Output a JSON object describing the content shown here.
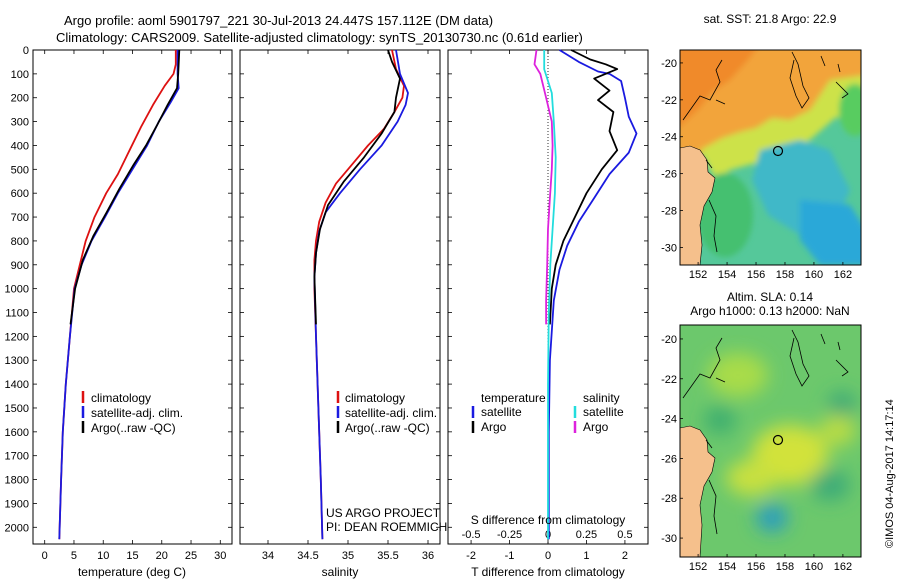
{
  "header": {
    "line1": "Argo profile: aoml 5901797_221 30-Jul-2013 24.447S 157.112E (DM data)",
    "line2": "Climatology: CARS2009. Satellite-adjusted climatology: synTS_20130730.nc (0.61d earlier)"
  },
  "depth_ticks": [
    "0",
    "100",
    "200",
    "300",
    "400",
    "500",
    "600",
    "700",
    "800",
    "900",
    "1000",
    "1100",
    "1200",
    "1300",
    "1400",
    "1500",
    "1600",
    "1700",
    "1800",
    "1900",
    "2000"
  ],
  "colors": {
    "climatology": "#dd1111",
    "satellite": "#1a1ae0",
    "argo": "#000000",
    "cyan": "#22dddd",
    "magenta": "#dd22dd",
    "land": "#f5c08c"
  },
  "credits": {
    "line1": "US ARGO PROJECT",
    "line2": "PI: DEAN ROEMMICH"
  },
  "watermark": "©IMOS 04-Aug-2017 14:17:14",
  "maps": {
    "sst": {
      "title": "sat. SST: 21.8 Argo: 22.9",
      "xticks": [
        "152",
        "154",
        "156",
        "158",
        "160",
        "162"
      ],
      "yticks": [
        "-20",
        "-22",
        "-24",
        "-26",
        "-28",
        "-30"
      ]
    },
    "sla": {
      "title1": "Altim. SLA: 0.14",
      "title2": "Argo h1000: 0.13 h2000: NaN",
      "xticks": [
        "152",
        "154",
        "156",
        "158",
        "160",
        "162"
      ],
      "yticks": [
        "-20",
        "-22",
        "-24",
        "-26",
        "-28",
        "-30"
      ]
    }
  },
  "chart_data": [
    {
      "type": "line",
      "id": "temperature",
      "xlabel": "temperature (deg C)",
      "ylabel": "depth",
      "xlim": [
        -2,
        32
      ],
      "ylim": [
        2070,
        0
      ],
      "xticks": [
        0,
        5,
        10,
        15,
        20,
        25,
        30
      ],
      "xtick_labels": [
        "0",
        "5",
        "10",
        "15",
        "20",
        "25",
        "30"
      ],
      "legend": [
        "climatology",
        "satellite-adj. clim.",
        "Argo(..raw -QC)"
      ],
      "series": [
        {
          "name": "climatology",
          "color": "#dd1111",
          "points": [
            [
              22.4,
              0
            ],
            [
              22.4,
              60
            ],
            [
              22.0,
              100
            ],
            [
              20.5,
              150
            ],
            [
              18.5,
              230
            ],
            [
              16.5,
              320
            ],
            [
              14.5,
              420
            ],
            [
              12.5,
              520
            ],
            [
              10.5,
              600
            ],
            [
              8.5,
              700
            ],
            [
              7.0,
              800
            ],
            [
              6.0,
              900
            ],
            [
              5.0,
              1000
            ],
            [
              4.3,
              1200
            ],
            [
              3.6,
              1400
            ],
            [
              3.1,
              1600
            ],
            [
              2.8,
              1800
            ],
            [
              2.5,
              2050
            ]
          ]
        },
        {
          "name": "satellite-adj. clim.",
          "color": "#1a1ae0",
          "points": [
            [
              22.7,
              0
            ],
            [
              22.7,
              100
            ],
            [
              22.9,
              160
            ],
            [
              21.5,
              220
            ],
            [
              19.5,
              300
            ],
            [
              17.5,
              400
            ],
            [
              15.0,
              500
            ],
            [
              12.5,
              600
            ],
            [
              10.3,
              700
            ],
            [
              8.0,
              800
            ],
            [
              6.3,
              900
            ],
            [
              5.1,
              1000
            ],
            [
              4.3,
              1200
            ],
            [
              3.6,
              1400
            ],
            [
              3.1,
              1600
            ],
            [
              2.8,
              1800
            ],
            [
              2.5,
              2050
            ]
          ]
        },
        {
          "name": "Argo(..raw -QC)",
          "color": "#000000",
          "points": [
            [
              23.0,
              0
            ],
            [
              22.8,
              100
            ],
            [
              22.6,
              160
            ],
            [
              21.0,
              230
            ],
            [
              19.3,
              310
            ],
            [
              17.3,
              400
            ],
            [
              15.2,
              480
            ],
            [
              12.8,
              580
            ],
            [
              10.6,
              680
            ],
            [
              8.3,
              780
            ],
            [
              6.5,
              880
            ],
            [
              5.2,
              1000
            ],
            [
              4.4,
              1150
            ]
          ]
        }
      ]
    },
    {
      "type": "line",
      "id": "salinity",
      "xlabel": "salinity",
      "ylabel": "depth",
      "xlim": [
        33.65,
        36.15
      ],
      "ylim": [
        2070,
        0
      ],
      "xticks": [
        34,
        34.5,
        35,
        35.5,
        36
      ],
      "xtick_labels": [
        "34",
        "34.5",
        "35",
        "35.5",
        "36"
      ],
      "legend": [
        "climatology",
        "satellite-adj. clim.",
        "Argo(..raw -QC)"
      ],
      "series": [
        {
          "name": "climatology",
          "color": "#dd1111",
          "points": [
            [
              35.55,
              0
            ],
            [
              35.6,
              80
            ],
            [
              35.7,
              150
            ],
            [
              35.68,
              200
            ],
            [
              35.58,
              260
            ],
            [
              35.45,
              330
            ],
            [
              35.25,
              400
            ],
            [
              35.05,
              480
            ],
            [
              34.85,
              560
            ],
            [
              34.72,
              640
            ],
            [
              34.64,
              720
            ],
            [
              34.6,
              800
            ],
            [
              34.58,
              880
            ],
            [
              34.58,
              1000
            ],
            [
              34.6,
              1200
            ],
            [
              34.63,
              1500
            ],
            [
              34.66,
              1800
            ],
            [
              34.68,
              2050
            ]
          ]
        },
        {
          "name": "satellite-adj. clim.",
          "color": "#1a1ae0",
          "points": [
            [
              35.6,
              0
            ],
            [
              35.65,
              100
            ],
            [
              35.75,
              180
            ],
            [
              35.72,
              230
            ],
            [
              35.62,
              300
            ],
            [
              35.42,
              400
            ],
            [
              35.15,
              500
            ],
            [
              34.9,
              600
            ],
            [
              34.72,
              680
            ],
            [
              34.64,
              760
            ],
            [
              34.6,
              850
            ],
            [
              34.58,
              950
            ],
            [
              34.6,
              1200
            ],
            [
              34.63,
              1500
            ],
            [
              34.66,
              1800
            ],
            [
              34.68,
              2050
            ]
          ]
        },
        {
          "name": "Argo(..raw -QC)",
          "color": "#000000",
          "points": [
            [
              35.5,
              0
            ],
            [
              35.55,
              50
            ],
            [
              35.65,
              120
            ],
            [
              35.6,
              200
            ],
            [
              35.58,
              260
            ],
            [
              35.42,
              350
            ],
            [
              35.2,
              450
            ],
            [
              34.95,
              550
            ],
            [
              34.75,
              650
            ],
            [
              34.65,
              750
            ],
            [
              34.6,
              850
            ],
            [
              34.58,
              950
            ],
            [
              34.6,
              1150
            ]
          ]
        }
      ]
    },
    {
      "type": "line",
      "id": "difference",
      "xlabel": "T difference from climatology",
      "xlabel2": "S difference from climatology",
      "ylabel": "depth",
      "xlim": [
        -2.6,
        2.6
      ],
      "ylim": [
        2070,
        0
      ],
      "xticks": [
        -2,
        -1,
        0,
        1,
        2
      ],
      "xtick_labels": [
        "-2",
        "-1",
        "0",
        "1",
        "2"
      ],
      "sticks": [
        -0.5,
        -0.25,
        0,
        0.25,
        0.5
      ],
      "stick_labels": [
        "-0.5",
        "-0.25",
        "0",
        "0.25",
        "0.5"
      ],
      "legend_headers": [
        "temperature",
        "salinity"
      ],
      "legend": [
        "satellite",
        "Argo",
        "satellite",
        "Argo"
      ],
      "series": [
        {
          "name": "T satellite",
          "color": "#1a1ae0",
          "points": [
            [
              0.3,
              0
            ],
            [
              0.8,
              50
            ],
            [
              1.3,
              90
            ],
            [
              1.6,
              100
            ],
            [
              1.9,
              130
            ],
            [
              2.0,
              200
            ],
            [
              2.1,
              280
            ],
            [
              2.3,
              350
            ],
            [
              2.1,
              430
            ],
            [
              1.6,
              520
            ],
            [
              1.2,
              620
            ],
            [
              0.8,
              720
            ],
            [
              0.5,
              820
            ],
            [
              0.3,
              920
            ],
            [
              0.15,
              1050
            ],
            [
              0.05,
              1300
            ],
            [
              0.02,
              1600
            ],
            [
              0.02,
              2050
            ]
          ]
        },
        {
          "name": "T Argo",
          "color": "#000000",
          "points": [
            [
              0.6,
              0
            ],
            [
              1.1,
              40
            ],
            [
              1.5,
              60
            ],
            [
              1.8,
              80
            ],
            [
              1.2,
              120
            ],
            [
              1.6,
              170
            ],
            [
              1.3,
              210
            ],
            [
              1.7,
              260
            ],
            [
              1.6,
              340
            ],
            [
              1.8,
              420
            ],
            [
              1.4,
              500
            ],
            [
              1.0,
              600
            ],
            [
              0.7,
              700
            ],
            [
              0.4,
              800
            ],
            [
              0.2,
              900
            ],
            [
              0.1,
              1000
            ],
            [
              0.05,
              1150
            ]
          ]
        },
        {
          "name": "S satellite",
          "color": "#22dddd",
          "points": [
            [
              -0.1,
              0
            ],
            [
              -0.1,
              80
            ],
            [
              0.1,
              180
            ],
            [
              0.15,
              300
            ],
            [
              0.2,
              450
            ],
            [
              0.18,
              600
            ],
            [
              0.12,
              750
            ],
            [
              0.06,
              900
            ],
            [
              0.02,
              1100
            ],
            [
              0.0,
              1400
            ],
            [
              0.0,
              2050
            ]
          ]
        },
        {
          "name": "S Argo",
          "color": "#dd22dd",
          "points": [
            [
              -0.3,
              0
            ],
            [
              -0.35,
              60
            ],
            [
              -0.2,
              100
            ],
            [
              -0.05,
              200
            ],
            [
              0.1,
              300
            ],
            [
              0.12,
              400
            ],
            [
              0.1,
              500
            ],
            [
              0.05,
              620
            ],
            [
              0.0,
              750
            ],
            [
              -0.02,
              900
            ],
            [
              -0.05,
              1050
            ],
            [
              -0.05,
              1150
            ]
          ]
        }
      ]
    }
  ]
}
